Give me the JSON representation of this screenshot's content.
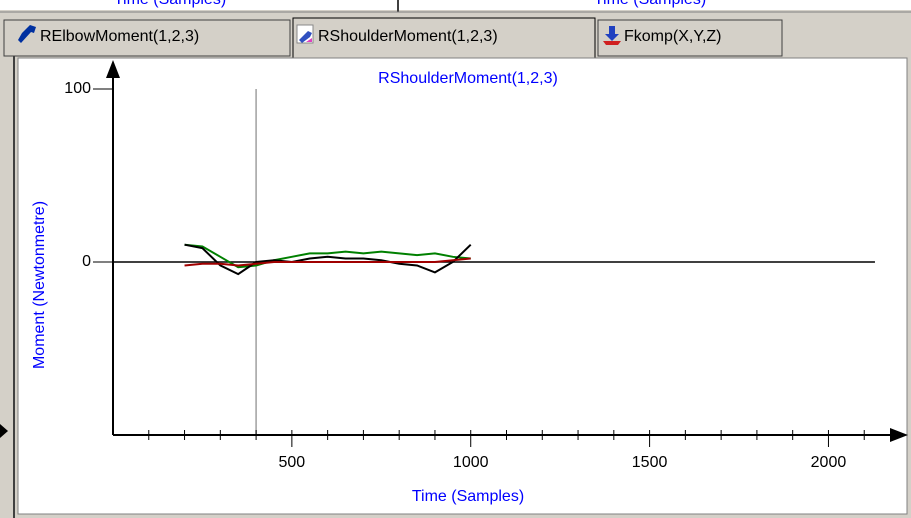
{
  "top_panels": [
    "Time (Samples)",
    "Time (Samples)"
  ],
  "tabs": [
    "RElbowMoment(1,2,3)",
    "RShoulderMoment(1,2,3)",
    "Fkomp(X,Y,Z)"
  ],
  "chart_data": {
    "type": "line",
    "title": "RShoulderMoment(1,2,3)",
    "x_label": "Time (Samples)",
    "y_label": "Moment (Newtonmetre)",
    "x": [
      200,
      250,
      300,
      350,
      400,
      450,
      500,
      550,
      600,
      650,
      700,
      750,
      800,
      850,
      900,
      950,
      1000
    ],
    "series": [
      {
        "color": "#008000",
        "values": [
          10,
          9,
          3,
          -3,
          -2,
          1,
          3,
          5,
          5,
          6,
          5,
          6,
          5,
          4,
          5,
          3,
          2
        ]
      },
      {
        "color": "#000000",
        "values": [
          10,
          8,
          -2,
          -7,
          0,
          1,
          0,
          2,
          3,
          2,
          2,
          1,
          -1,
          -2,
          -6,
          0,
          10
        ]
      },
      {
        "color": "#a00000",
        "values": [
          -2,
          -1,
          -1,
          -2,
          -1,
          0,
          0,
          0,
          0,
          0,
          0,
          0,
          0,
          0,
          0,
          1,
          2
        ]
      }
    ],
    "xlim": [
      0,
      2200
    ],
    "ylim": [
      -100,
      100
    ],
    "xticks": [
      500,
      1000,
      1500,
      2000
    ],
    "xminorticks": [
      100,
      200,
      300,
      400,
      600,
      700,
      800,
      900,
      1100,
      1200,
      1300,
      1400,
      1600,
      1700,
      1800,
      1900,
      2100
    ],
    "yticks": [
      0,
      100
    ],
    "cursor_x": 400
  }
}
